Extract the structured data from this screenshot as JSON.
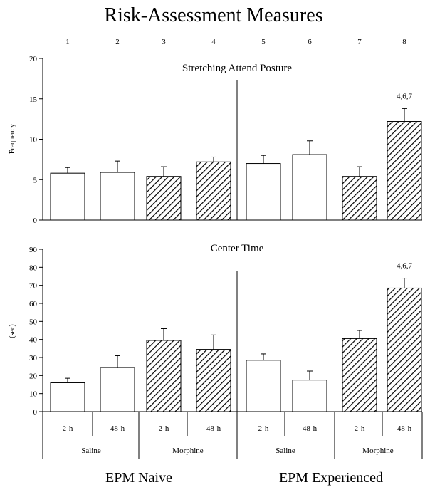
{
  "figure": {
    "title": "Risk-Assessment Measures",
    "group_numbers": [
      "1",
      "2",
      "3",
      "4",
      "5",
      "6",
      "7",
      "8"
    ],
    "group_labels": [
      "EPM Naive",
      "EPM Experienced"
    ],
    "time_labels": [
      "2-h",
      "48-h",
      "2-h",
      "48-h",
      "2-h",
      "48-h",
      "2-h",
      "48-h"
    ],
    "drug_labels": [
      "Saline",
      "Morphine",
      "Saline",
      "Morphine"
    ]
  },
  "chart_data": [
    {
      "type": "bar",
      "title": "Stretching Attend Posture",
      "ylabel": "Frequency",
      "ylim": [
        0,
        20
      ],
      "yticks": [
        "0",
        "5",
        "10",
        "15",
        "20"
      ],
      "categories": [
        "1",
        "2",
        "3",
        "4",
        "5",
        "6",
        "7",
        "8"
      ],
      "values": [
        5.8,
        5.9,
        5.4,
        7.2,
        7.0,
        8.1,
        5.4,
        12.2
      ],
      "errors": [
        0.7,
        1.4,
        1.2,
        0.6,
        1.0,
        1.7,
        1.2,
        1.6
      ],
      "hatched": [
        false,
        false,
        true,
        true,
        false,
        false,
        true,
        true
      ],
      "annotation": {
        "bar": 8,
        "text": "4,6,7"
      }
    },
    {
      "type": "bar",
      "title": "Center Time",
      "ylabel": "(sec)",
      "ylim": [
        0,
        90
      ],
      "yticks": [
        "0",
        "10",
        "20",
        "30",
        "40",
        "50",
        "60",
        "70",
        "80",
        "90"
      ],
      "categories": [
        "1",
        "2",
        "3",
        "4",
        "5",
        "6",
        "7",
        "8"
      ],
      "values": [
        16,
        24.5,
        39.5,
        34.5,
        28.5,
        17.5,
        40.5,
        68.5
      ],
      "errors": [
        2.5,
        6.5,
        6.5,
        8,
        3.5,
        5,
        4.5,
        5.5
      ],
      "hatched": [
        false,
        false,
        true,
        true,
        false,
        false,
        true,
        true
      ],
      "annotation": {
        "bar": 8,
        "text": "4,6,7"
      }
    }
  ],
  "colors": {
    "open_fill": "#ffffff",
    "hatch": "#000000",
    "axis": "#000000"
  }
}
